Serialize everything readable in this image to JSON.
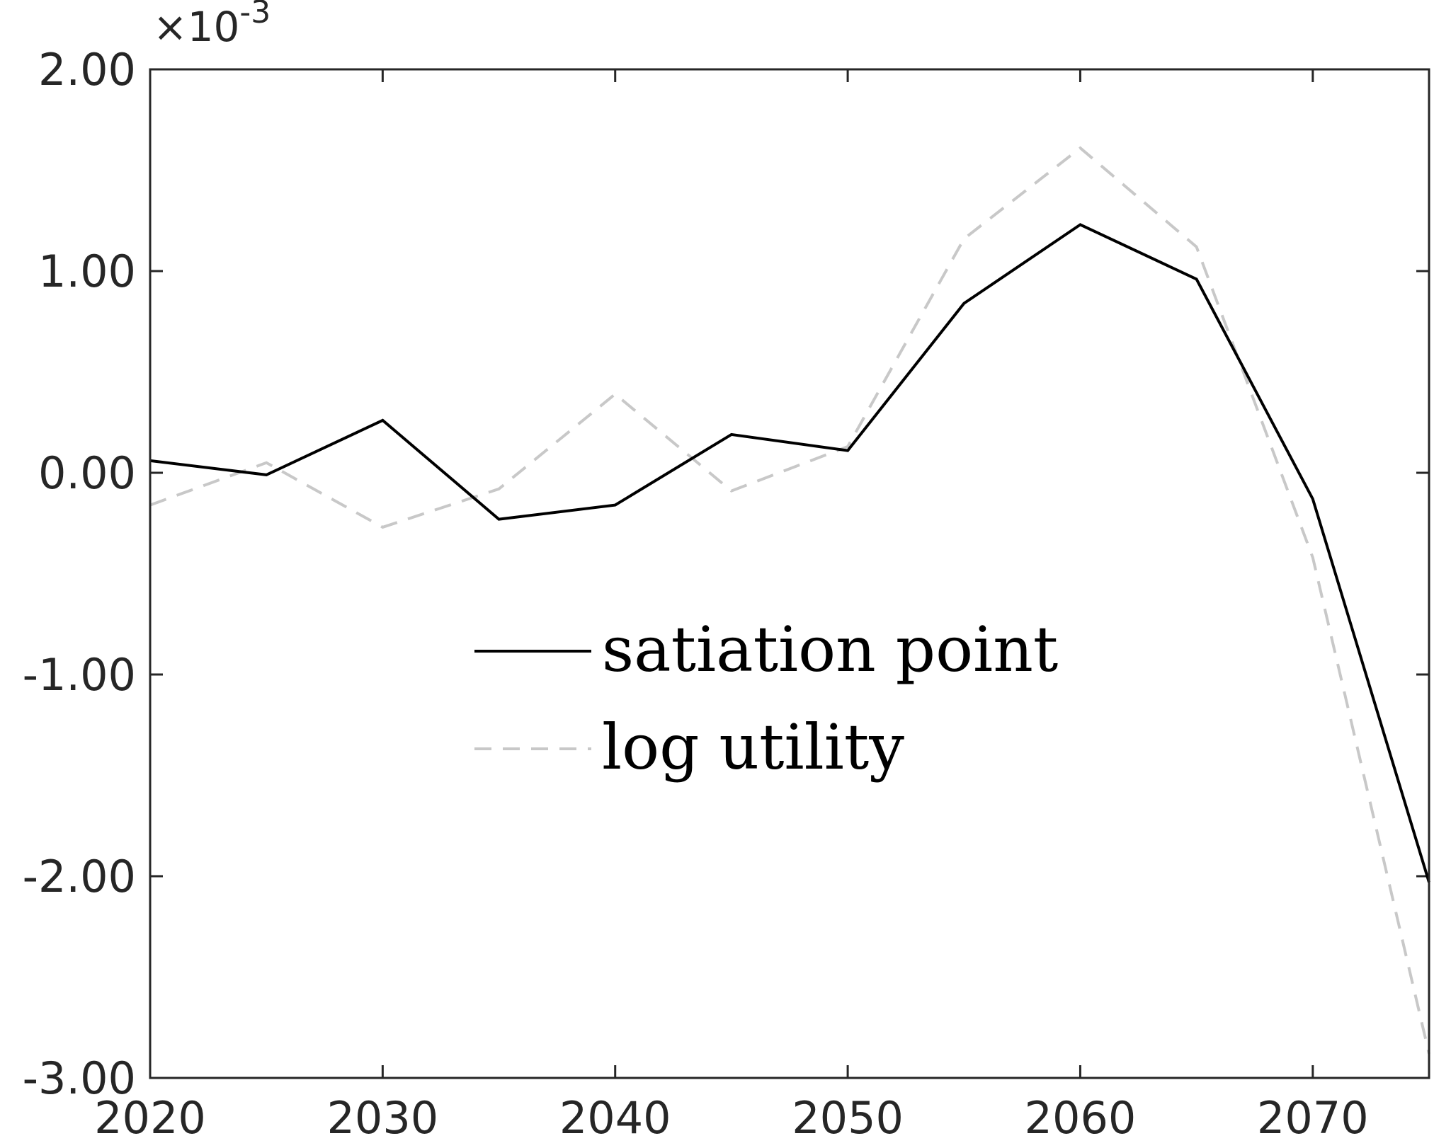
{
  "chart_data": {
    "type": "line",
    "x": [
      2020,
      2025,
      2030,
      2035,
      2040,
      2045,
      2050,
      2055,
      2060,
      2065,
      2070,
      2075
    ],
    "series": [
      {
        "name": "satiation point",
        "values": [
          6e-05,
          -1e-05,
          0.00026,
          -0.00023,
          -0.00016,
          0.00019,
          0.00011,
          0.00084,
          0.00123,
          0.00096,
          -0.00013,
          -0.00203
        ],
        "color": "#000000",
        "style": "solid"
      },
      {
        "name": "log utility",
        "values": [
          -0.00016,
          5e-05,
          -0.00027,
          -8e-05,
          0.00039,
          -9e-05,
          0.00013,
          0.00116,
          0.00161,
          0.00112,
          -0.00042,
          -0.00288
        ],
        "color": "#c8c8c8",
        "style": "dashed"
      }
    ],
    "xlim": [
      2020,
      2075
    ],
    "ylim": [
      -0.003,
      0.002
    ],
    "x_ticks": [
      "2020",
      "2030",
      "2040",
      "2050",
      "2060",
      "2070"
    ],
    "y_ticks": [
      "-3.00",
      "-2.00",
      "-1.00",
      "0.00",
      "1.00",
      "2.00"
    ],
    "y_exponent_base": "×10",
    "y_exponent_power": "-3",
    "grid": false,
    "legend_position": "center"
  }
}
